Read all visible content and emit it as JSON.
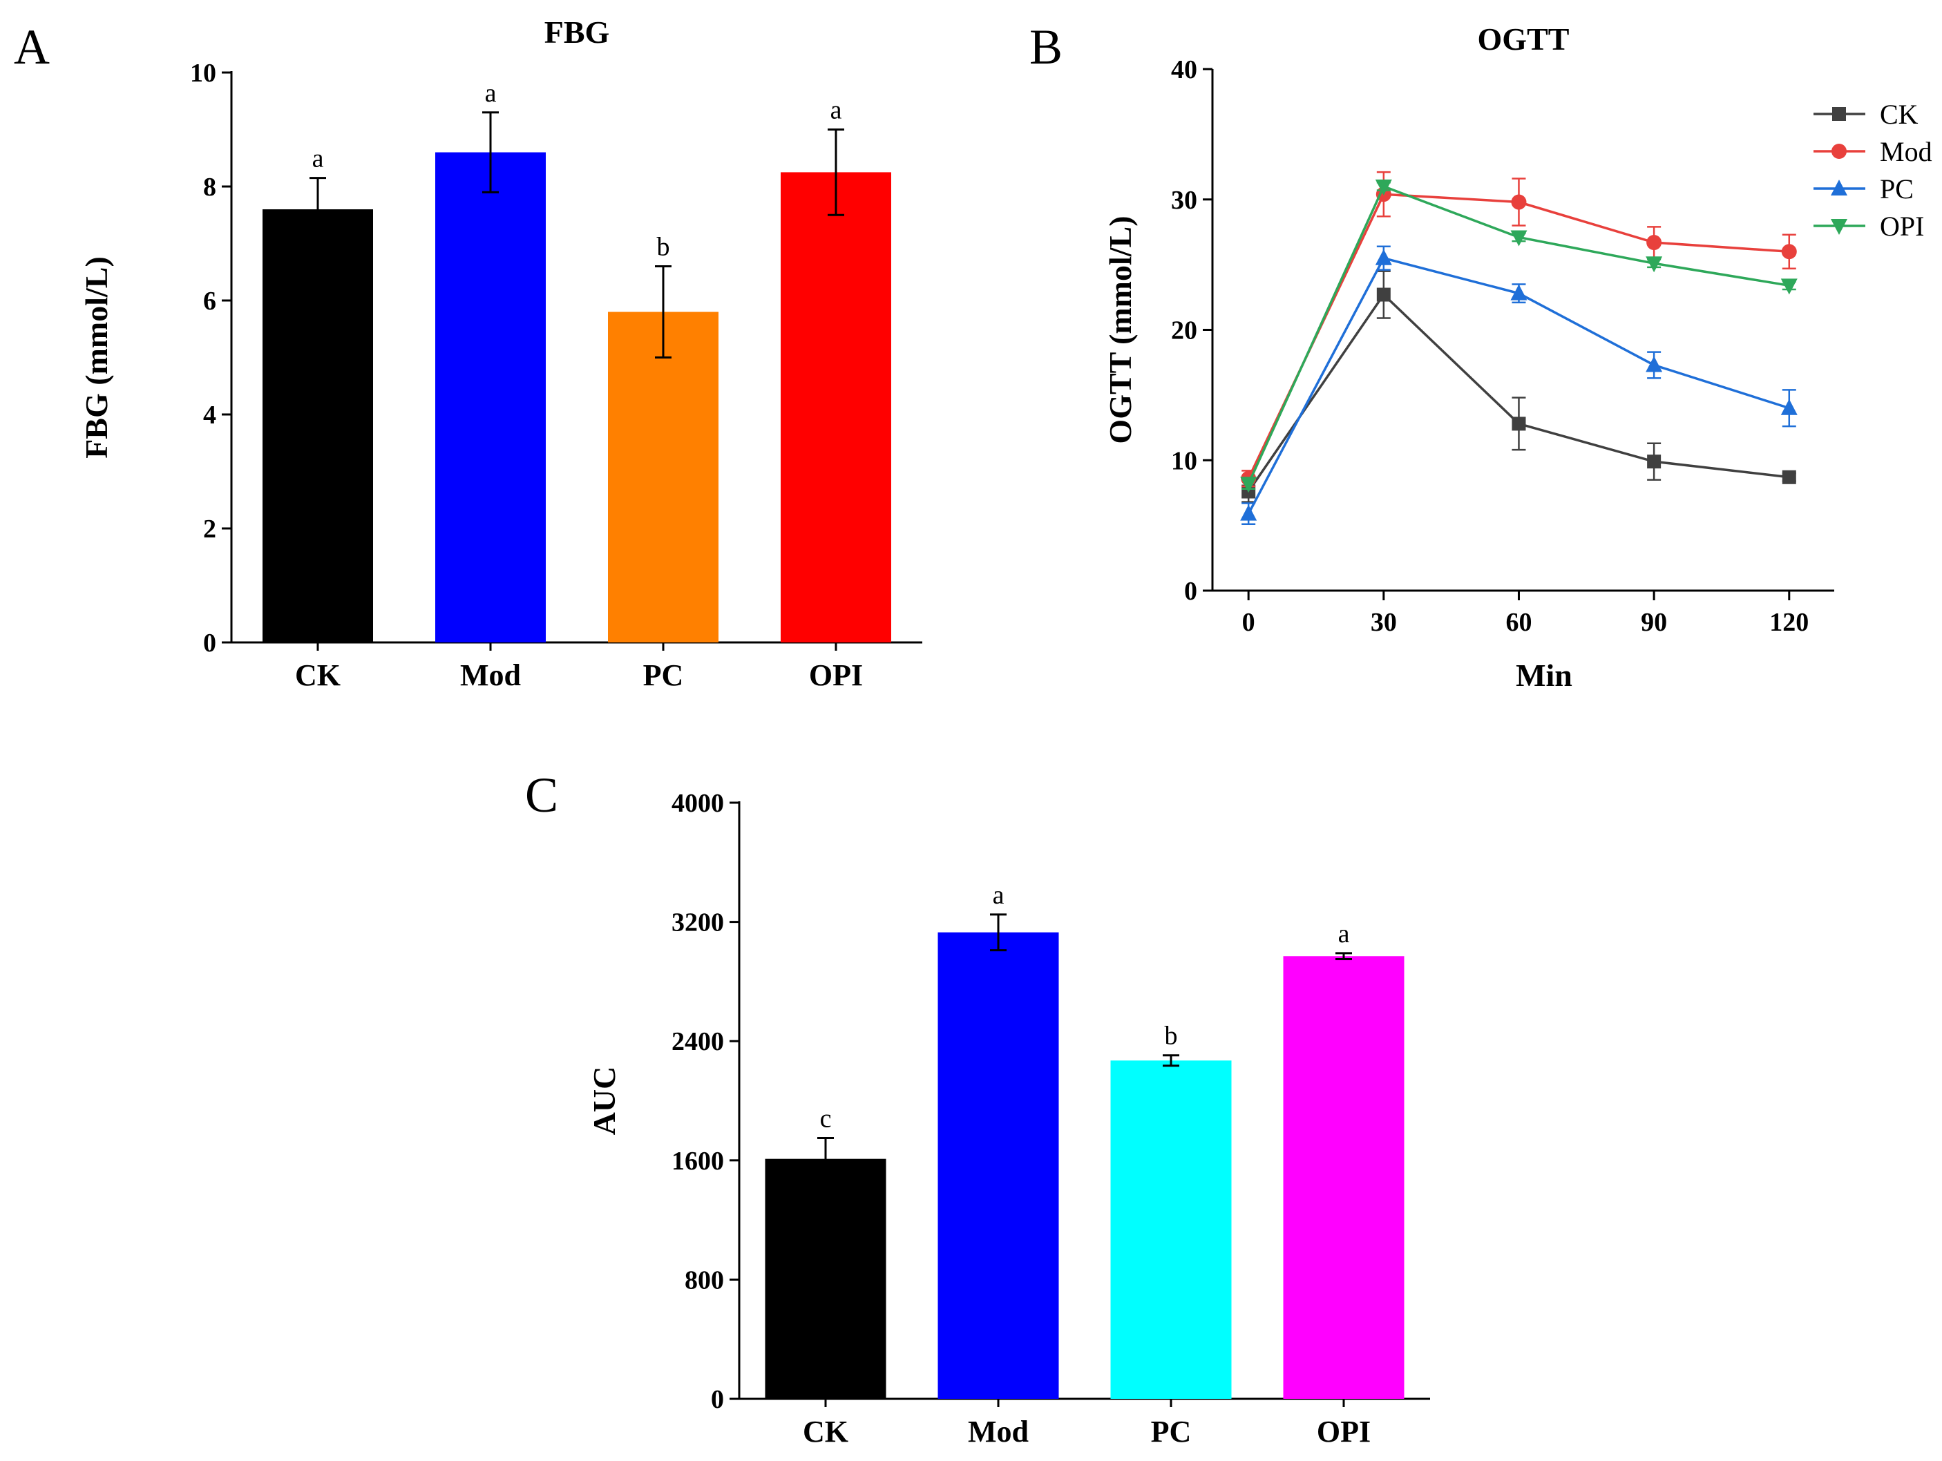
{
  "panels": {
    "a": "A",
    "b": "B",
    "c": "C"
  },
  "chart_data": [
    {
      "id": "fbg",
      "type": "bar",
      "title": "FBG",
      "xlabel": "",
      "ylabel": "FBG (mmol/L)",
      "ylim": [
        0,
        10
      ],
      "yticks": [
        0,
        2,
        4,
        6,
        8,
        10
      ],
      "categories": [
        "CK",
        "Mod",
        "PC",
        "OPI"
      ],
      "values": [
        7.6,
        8.6,
        5.8,
        8.25
      ],
      "errors": [
        0.55,
        0.7,
        0.8,
        0.75
      ],
      "significance": [
        "a",
        "a",
        "b",
        "a"
      ],
      "colors": [
        "#000000",
        "#0000ff",
        "#ff8000",
        "#ff0000"
      ]
    },
    {
      "id": "ogtt",
      "type": "line",
      "title": "OGTT",
      "xlabel": "Min",
      "ylabel": "OGTT (mmol/L)",
      "ylim": [
        0,
        40
      ],
      "yticks": [
        0,
        10,
        20,
        30,
        40
      ],
      "x": [
        0,
        30,
        60,
        90,
        120
      ],
      "xlim": [
        -8,
        130
      ],
      "legend_position": "top-right",
      "series": [
        {
          "name": "CK",
          "color": "#404040",
          "marker": "square",
          "values": [
            7.6,
            22.7,
            12.8,
            9.9,
            8.7
          ],
          "errors": [
            0.8,
            1.8,
            2.0,
            1.4,
            0.3
          ]
        },
        {
          "name": "Mod",
          "color": "#e8403c",
          "marker": "circle",
          "values": [
            8.6,
            30.4,
            29.8,
            26.7,
            26.0
          ],
          "errors": [
            0.6,
            1.7,
            1.8,
            1.2,
            1.3
          ]
        },
        {
          "name": "PC",
          "color": "#1f6fd8",
          "marker": "triangle-up",
          "values": [
            5.9,
            25.5,
            22.8,
            17.3,
            14.0
          ],
          "errors": [
            0.8,
            0.9,
            0.7,
            1.0,
            1.4
          ]
        },
        {
          "name": "OPI",
          "color": "#2ea85a",
          "marker": "triangle-down",
          "values": [
            8.2,
            31.0,
            27.1,
            25.1,
            23.4
          ],
          "errors": [
            0.4,
            0.3,
            0.3,
            0.3,
            0.3
          ]
        }
      ]
    },
    {
      "id": "auc",
      "type": "bar",
      "title": "",
      "xlabel": "",
      "ylabel": "AUC",
      "ylim": [
        0,
        4000
      ],
      "yticks": [
        0,
        800,
        1600,
        2400,
        3200,
        4000
      ],
      "categories": [
        "CK",
        "Mod",
        "PC",
        "OPI"
      ],
      "values": [
        1610,
        3130,
        2270,
        2970
      ],
      "errors": [
        140,
        120,
        35,
        20
      ],
      "significance": [
        "c",
        "a",
        "b",
        "a"
      ],
      "colors": [
        "#000000",
        "#0000ff",
        "#00ffff",
        "#ff00ff"
      ]
    }
  ]
}
